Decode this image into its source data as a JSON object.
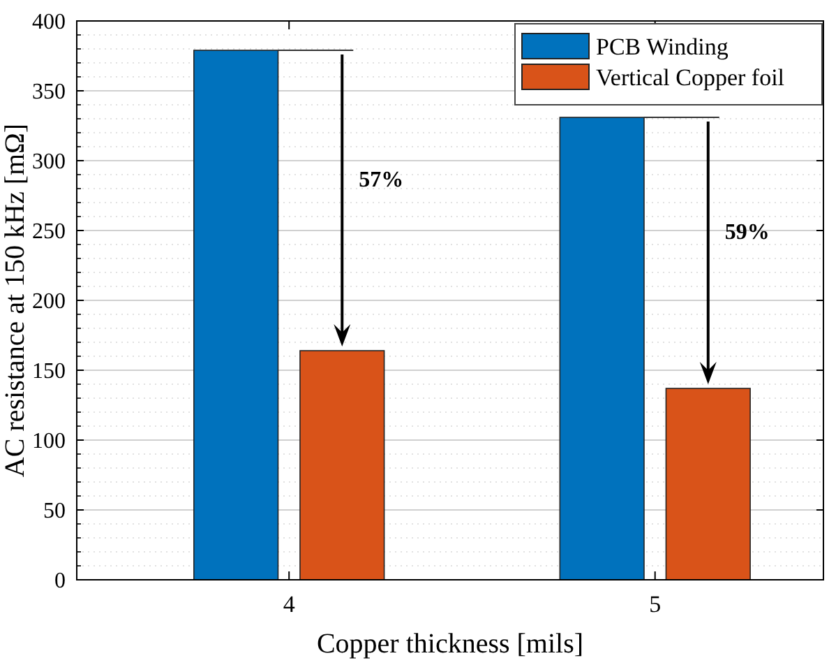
{
  "chart_data": {
    "type": "bar",
    "xlabel": "Copper thickness [mils]",
    "ylabel": "AC resistance at 150 kHz [mΩ]",
    "categories": [
      "4",
      "5"
    ],
    "series": [
      {
        "name": "PCB Winding",
        "color": "#0072bd",
        "values": [
          379,
          331
        ]
      },
      {
        "name": "Vertical Copper foil",
        "color": "#d95319",
        "values": [
          164,
          137
        ]
      }
    ],
    "ylim": [
      0,
      400
    ],
    "yticks": [
      0,
      50,
      100,
      150,
      200,
      250,
      300,
      350,
      400
    ],
    "grid": "y",
    "legend": "top right",
    "annotations": [
      "57%",
      "59%"
    ]
  }
}
